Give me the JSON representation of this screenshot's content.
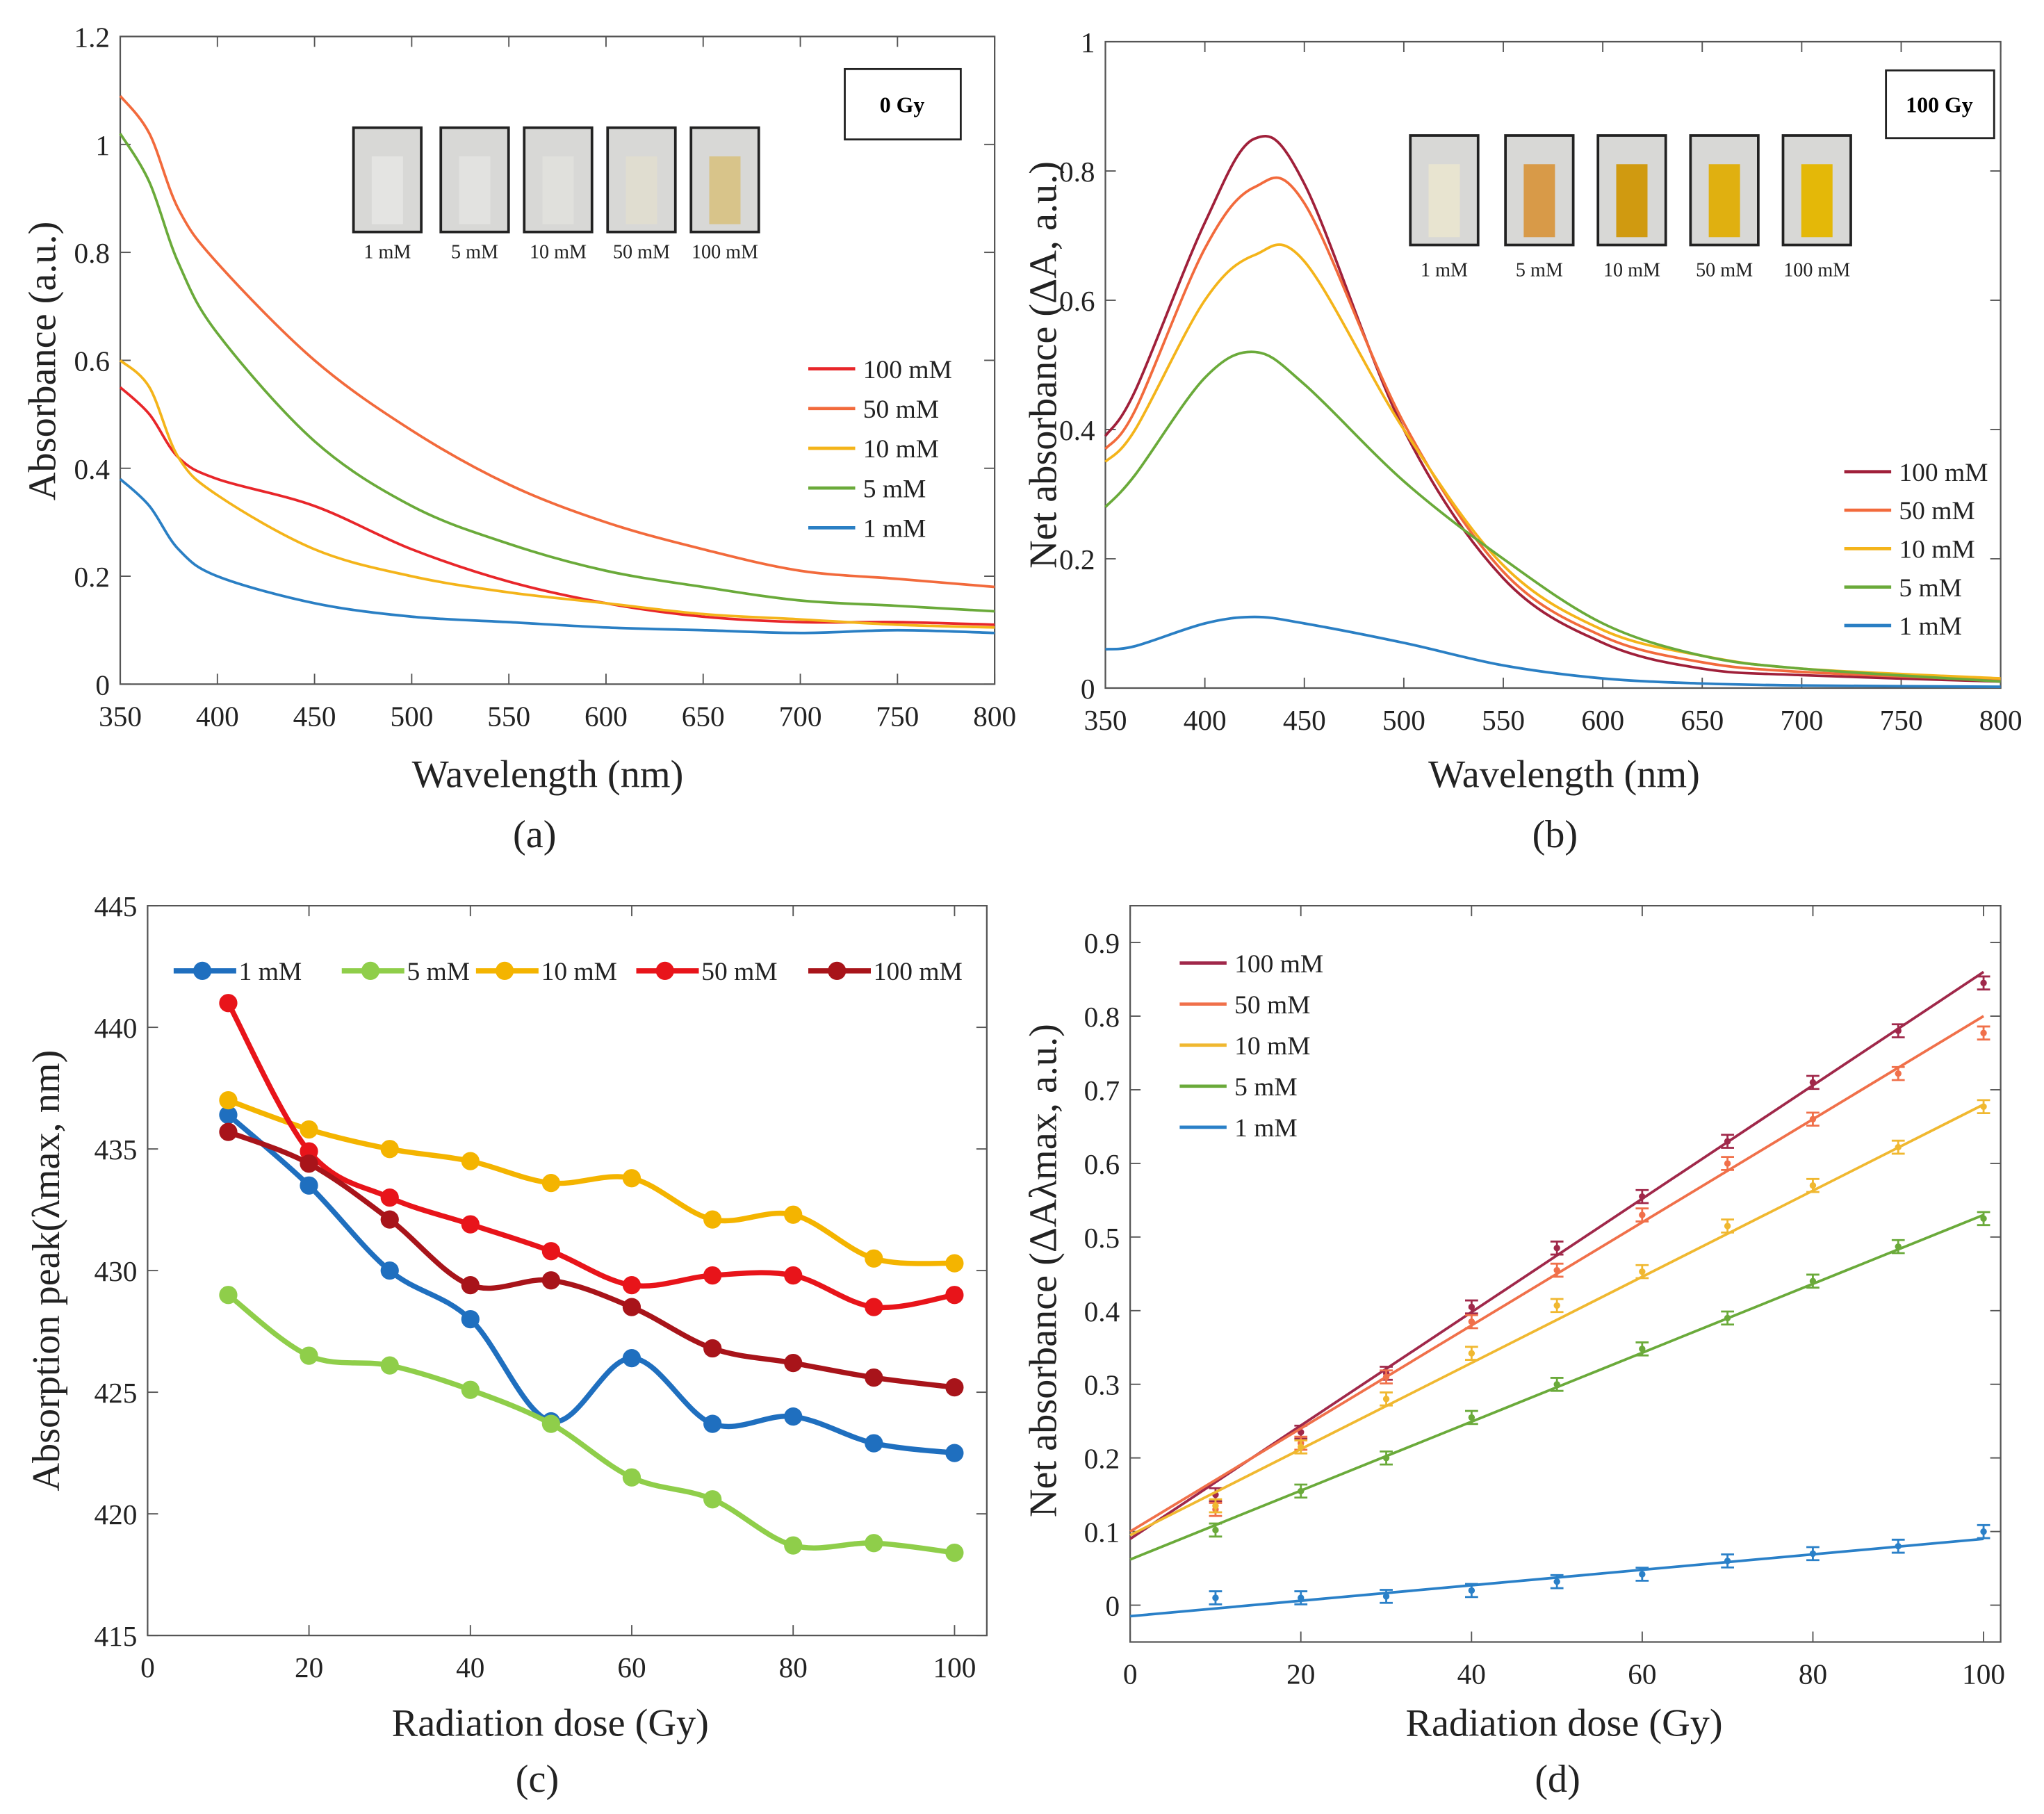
{
  "panels": {
    "a": {
      "caption": "(a)",
      "xlabel": "Wavelength (nm)",
      "ylabel": "Absorbance (a.u.)",
      "box_label": "0 Gy"
    },
    "b": {
      "caption": "(b)",
      "xlabel": "Wavelength (nm)",
      "ylabel": "Net absorbance (ΔA, a.u.)",
      "box_label": "100 Gy"
    },
    "c": {
      "caption": "(c)",
      "xlabel": "Radiation dose (Gy)",
      "ylabel": "Absorption peak(λmax, nm)"
    },
    "d": {
      "caption": "(d)",
      "xlabel": "Radiation dose (Gy)",
      "ylabel": "Net absorbance (ΔAλmax, a.u.)"
    }
  },
  "vials": {
    "a": [
      {
        "label": "1 mM",
        "color": "#e4e4e2"
      },
      {
        "label": "5 mM",
        "color": "#e2e2e0"
      },
      {
        "label": "10 mM",
        "color": "#e0e0dc"
      },
      {
        "label": "50 mM",
        "color": "#e0ddd0"
      },
      {
        "label": "100 mM",
        "color": "#d8c48a"
      }
    ],
    "b": [
      {
        "label": "1 mM",
        "color": "#e8e4d0"
      },
      {
        "label": "5 mM",
        "color": "#d89a48"
      },
      {
        "label": "10 mM",
        "color": "#d09a10"
      },
      {
        "label": "50 mM",
        "color": "#e0b010"
      },
      {
        "label": "100 mM",
        "color": "#e4b808"
      }
    ]
  },
  "chart_data": [
    {
      "id": "a",
      "type": "line",
      "xlim": [
        350,
        800
      ],
      "ylim": [
        0,
        1.2
      ],
      "xticks": [
        350,
        400,
        450,
        500,
        550,
        600,
        650,
        700,
        750,
        800
      ],
      "yticks": [
        0,
        0.2,
        0.4,
        0.6,
        0.8,
        1,
        1.2
      ],
      "xlabel": "Wavelength (nm)",
      "ylabel": "Absorbance (a.u.)",
      "legend": "right",
      "x": [
        350,
        365,
        380,
        400,
        450,
        500,
        550,
        600,
        650,
        700,
        750,
        800
      ],
      "series": [
        {
          "name": "100 mM",
          "color": "#e8262a",
          "values": [
            0.55,
            0.5,
            0.42,
            0.38,
            0.33,
            0.25,
            0.19,
            0.15,
            0.125,
            0.115,
            0.115,
            0.11
          ]
        },
        {
          "name": "50   mM",
          "color": "#f26a3c",
          "values": [
            1.09,
            1.02,
            0.88,
            0.78,
            0.6,
            0.47,
            0.37,
            0.3,
            0.25,
            0.21,
            0.195,
            0.18
          ]
        },
        {
          "name": "10   mM",
          "color": "#f4b41a",
          "values": [
            0.6,
            0.55,
            0.42,
            0.35,
            0.25,
            0.2,
            0.17,
            0.15,
            0.13,
            0.12,
            0.11,
            0.105
          ]
        },
        {
          "name": "5     mM",
          "color": "#6aaa3a",
          "values": [
            1.02,
            0.93,
            0.78,
            0.65,
            0.45,
            0.33,
            0.26,
            0.21,
            0.18,
            0.155,
            0.145,
            0.135
          ]
        },
        {
          "name": "1     mM",
          "color": "#2a7fc4",
          "values": [
            0.38,
            0.33,
            0.25,
            0.2,
            0.15,
            0.125,
            0.115,
            0.105,
            0.1,
            0.095,
            0.1,
            0.095
          ]
        }
      ]
    },
    {
      "id": "b",
      "type": "line",
      "xlim": [
        350,
        800
      ],
      "ylim": [
        0,
        1
      ],
      "xticks": [
        350,
        400,
        450,
        500,
        550,
        600,
        650,
        700,
        750,
        800
      ],
      "yticks": [
        0,
        0.2,
        0.4,
        0.6,
        0.8,
        1
      ],
      "xlabel": "Wavelength (nm)",
      "ylabel": "Net absorbance (ΔA, a.u.)",
      "legend": "right",
      "x": [
        350,
        365,
        400,
        425,
        450,
        500,
        550,
        600,
        650,
        700,
        800
      ],
      "series": [
        {
          "name": "100 mM",
          "color": "#a0203a",
          "values": [
            0.39,
            0.46,
            0.72,
            0.85,
            0.78,
            0.4,
            0.17,
            0.07,
            0.03,
            0.02,
            0.01
          ]
        },
        {
          "name": "50   mM",
          "color": "#f26a3c",
          "values": [
            0.37,
            0.43,
            0.68,
            0.775,
            0.75,
            0.41,
            0.18,
            0.08,
            0.04,
            0.025,
            0.012
          ]
        },
        {
          "name": "10   mM",
          "color": "#f4b41a",
          "values": [
            0.35,
            0.4,
            0.6,
            0.67,
            0.66,
            0.4,
            0.19,
            0.09,
            0.05,
            0.03,
            0.015
          ]
        },
        {
          "name": "5     mM",
          "color": "#6aaa3a",
          "values": [
            0.28,
            0.33,
            0.48,
            0.52,
            0.47,
            0.32,
            0.2,
            0.1,
            0.05,
            0.03,
            0.01
          ]
        },
        {
          "name": "1     mM",
          "color": "#2a7fc4",
          "values": [
            0.06,
            0.065,
            0.1,
            0.11,
            0.1,
            0.07,
            0.035,
            0.015,
            0.007,
            0.004,
            0.002
          ]
        }
      ]
    },
    {
      "id": "c",
      "type": "line",
      "xlim": [
        0,
        104
      ],
      "ylim": [
        415,
        445
      ],
      "xticks": [
        0,
        20,
        40,
        60,
        80,
        100
      ],
      "yticks": [
        415,
        420,
        425,
        430,
        435,
        440,
        445
      ],
      "xlabel": "Radiation dose (Gy)",
      "ylabel": "Absorption peak(λmax, nm)",
      "legend": "top",
      "x": [
        10,
        20,
        30,
        40,
        50,
        60,
        70,
        80,
        90,
        100
      ],
      "series": [
        {
          "name": "1 mM",
          "color": "#1f6fbf",
          "values": [
            436.4,
            433.5,
            430,
            428,
            423.8,
            426.4,
            423.7,
            424,
            422.9,
            422.5
          ]
        },
        {
          "name": "5 mM",
          "color": "#8fce4a",
          "values": [
            429,
            426.5,
            426.1,
            425.1,
            423.7,
            421.5,
            420.6,
            418.7,
            418.8,
            418.4
          ]
        },
        {
          "name": "10 mM",
          "color": "#f4b400",
          "values": [
            437,
            435.8,
            435,
            434.5,
            433.6,
            433.8,
            432.1,
            432.3,
            430.5,
            430.3
          ]
        },
        {
          "name": "50 mM",
          "color": "#e8141a",
          "values": [
            441,
            434.9,
            433,
            431.9,
            430.8,
            429.4,
            429.8,
            429.8,
            428.5,
            429
          ]
        },
        {
          "name": "100 mM",
          "color": "#a8141a",
          "values": [
            435.7,
            434.4,
            432.1,
            429.4,
            429.6,
            428.5,
            426.8,
            426.2,
            425.6,
            425.2
          ]
        }
      ]
    },
    {
      "id": "d",
      "type": "scatter",
      "xlim": [
        0,
        102
      ],
      "ylim": [
        -0.05,
        0.95
      ],
      "xticks": [
        0,
        20,
        40,
        60,
        80,
        100
      ],
      "yticks": [
        0,
        0.1,
        0.2,
        0.3,
        0.4,
        0.5,
        0.6,
        0.7,
        0.8,
        0.9
      ],
      "xlabel": "Radiation dose (Gy)",
      "ylabel": "Net absorbance (ΔAλmax, a.u.)",
      "legend": "top-left",
      "x": [
        10,
        20,
        30,
        40,
        50,
        60,
        70,
        80,
        90,
        100
      ],
      "series": [
        {
          "name": "100 mM",
          "color": "#a0284a",
          "values": [
            0.15,
            0.235,
            0.315,
            0.405,
            0.485,
            0.555,
            0.63,
            0.71,
            0.78,
            0.845
          ],
          "fit": [
            0.09,
            0.86
          ]
        },
        {
          "name": "50   mM",
          "color": "#f0704a",
          "values": [
            0.13,
            0.22,
            0.31,
            0.385,
            0.455,
            0.53,
            0.6,
            0.66,
            0.722,
            0.777
          ],
          "fit": [
            0.1,
            0.8
          ]
        },
        {
          "name": "10   mM",
          "color": "#f0b830",
          "values": [
            0.135,
            0.215,
            0.28,
            0.342,
            0.407,
            0.453,
            0.515,
            0.57,
            0.622,
            0.677
          ],
          "fit": [
            0.095,
            0.68
          ]
        },
        {
          "name": "5     mM",
          "color": "#6aaa3a",
          "values": [
            0.102,
            0.155,
            0.2,
            0.255,
            0.3,
            0.348,
            0.39,
            0.44,
            0.487,
            0.525
          ],
          "fit": [
            0.062,
            0.53
          ]
        },
        {
          "name": "1     mM",
          "color": "#2a80c8",
          "values": [
            0.01,
            0.01,
            0.012,
            0.02,
            0.032,
            0.042,
            0.06,
            0.07,
            0.08,
            0.1
          ],
          "fit": [
            -0.015,
            0.09
          ]
        }
      ]
    }
  ]
}
